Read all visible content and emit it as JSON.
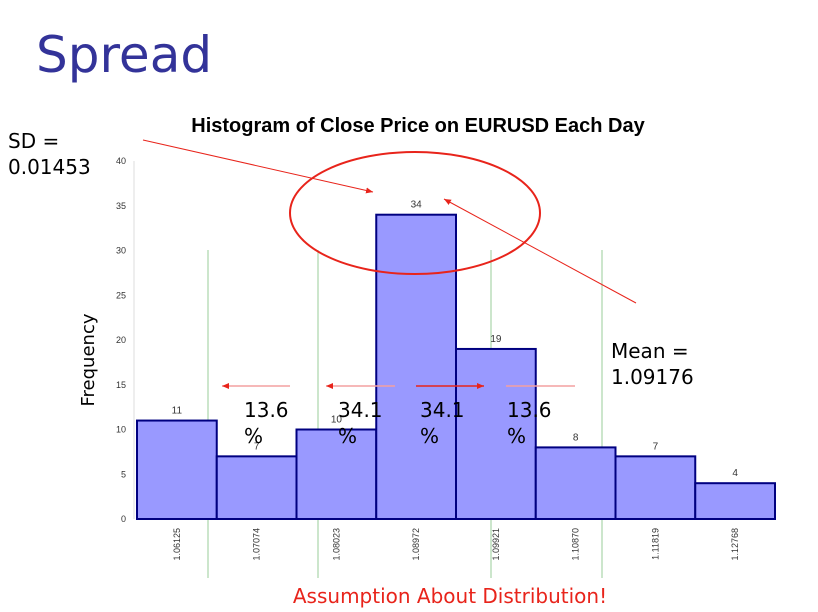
{
  "slide": {
    "title": "Spread",
    "sd_text": "SD =\n0.01453",
    "mean_text": "Mean =\n1.09176",
    "footer": "Assumption About Distribution!",
    "percent_labels": [
      "13.6 %",
      "34.1 %",
      "34.1 %",
      "13.6 %"
    ]
  },
  "colors": {
    "title": "#333399",
    "bar_fill": "#9999ff",
    "bar_stroke": "#000080",
    "annotation": "#e8241b",
    "sd_lines": "#99cc99"
  },
  "chart_data": {
    "type": "bar",
    "title": "Histogram of Close Price on EURUSD Each Day",
    "ylabel": "Frequency",
    "xlabel": "",
    "categories": [
      "1.06125",
      "1.07074",
      "1.08023",
      "1.08972",
      "1.09921",
      "1.10870",
      "1.11819",
      "1.12768"
    ],
    "values": [
      11,
      7,
      10,
      34,
      19,
      8,
      7,
      4
    ],
    "ylim": [
      0,
      40
    ],
    "yticks": [
      0,
      5,
      10,
      15,
      20,
      25,
      30,
      35,
      40
    ],
    "grid": false,
    "legend": "none"
  }
}
